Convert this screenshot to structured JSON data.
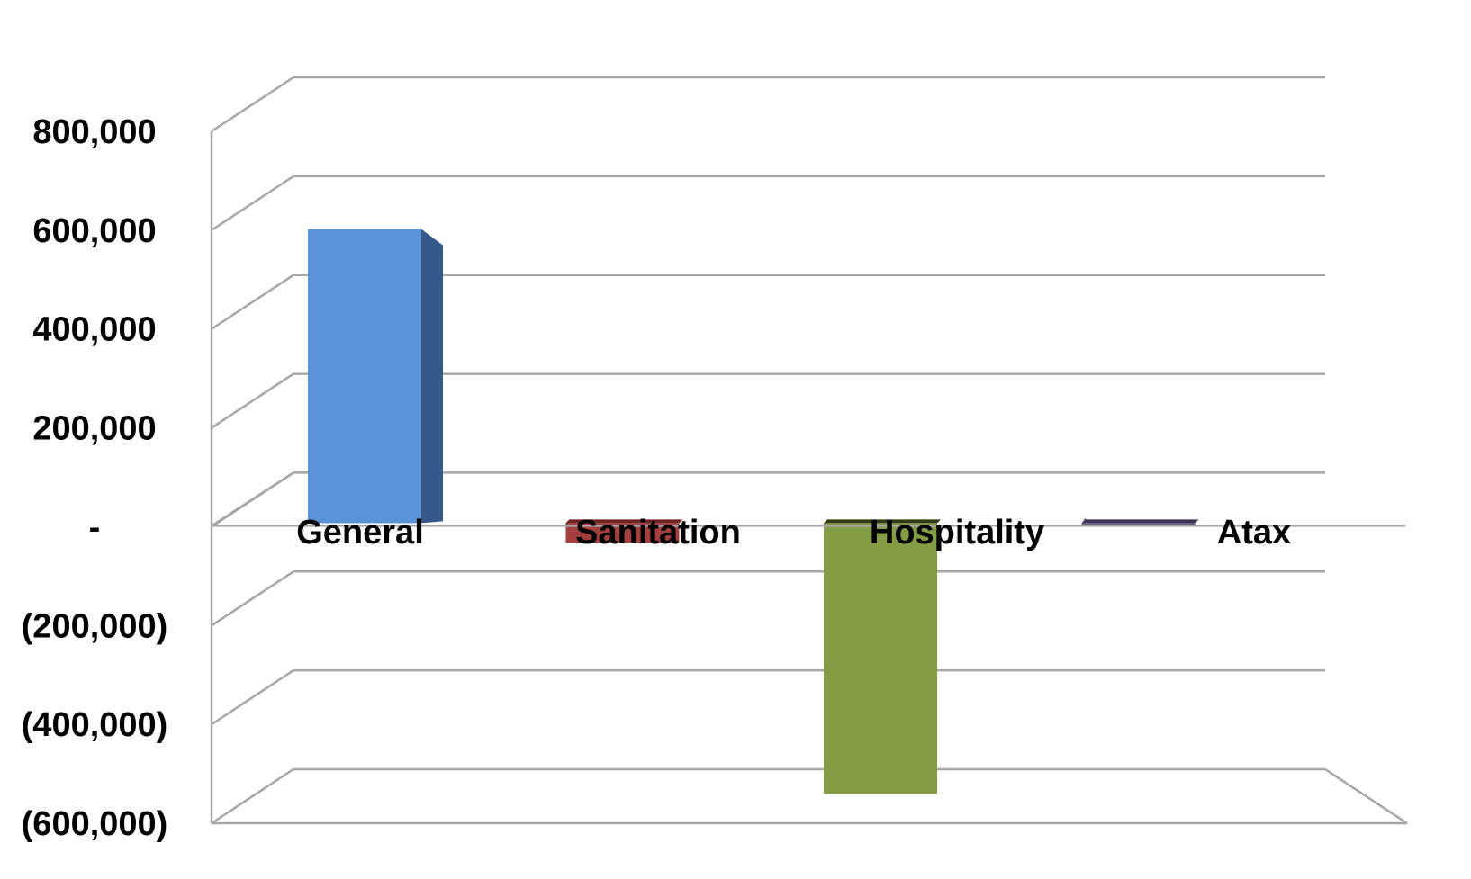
{
  "chart_data": {
    "type": "bar",
    "style": "3d-column",
    "categories": [
      "General",
      "Sanitation",
      "Hospitality",
      "Atax"
    ],
    "series": [
      {
        "values": [
          595000,
          -40000,
          -548000,
          -3000
        ]
      }
    ],
    "colors": {
      "General": {
        "front": "#5B93D9",
        "side": "#35598A"
      },
      "Sanitation": {
        "front": "#A33F3E",
        "side": "#6E2524"
      },
      "Hospitality": {
        "front": "#839D45",
        "side": "#2F3B16"
      },
      "Atax": {
        "front": "#6A5A8C",
        "side": "#3F3457"
      }
    },
    "gridline_color": "#A6A6A6",
    "ylim": [
      -600000,
      800000
    ],
    "yticks": [
      800000,
      600000,
      400000,
      200000,
      0,
      -200000,
      -400000,
      -600000
    ],
    "ytick_labels": [
      "800,000",
      "600,000",
      "400,000",
      "200,000",
      "-",
      "(200,000)",
      "(400,000)",
      "(600,000)"
    ],
    "grid": true,
    "legend": "none",
    "title": "",
    "xlabel": "",
    "ylabel": ""
  }
}
